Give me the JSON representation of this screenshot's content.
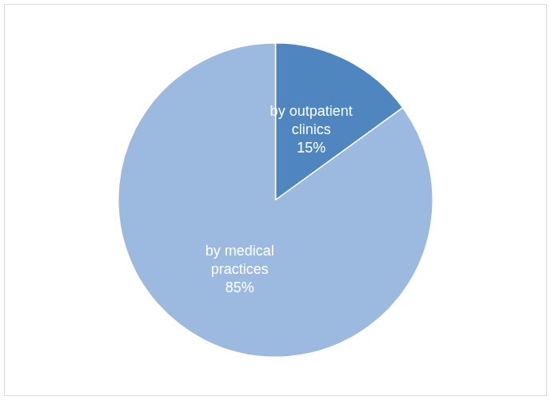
{
  "chart_data": {
    "type": "pie",
    "categories": [
      "by outpatient clinics",
      "by medical practices"
    ],
    "values": [
      15,
      85
    ],
    "value_labels": [
      "15%",
      "85%"
    ],
    "colors": [
      "#4f86bf",
      "#9cbae0"
    ],
    "data_labels": true
  }
}
